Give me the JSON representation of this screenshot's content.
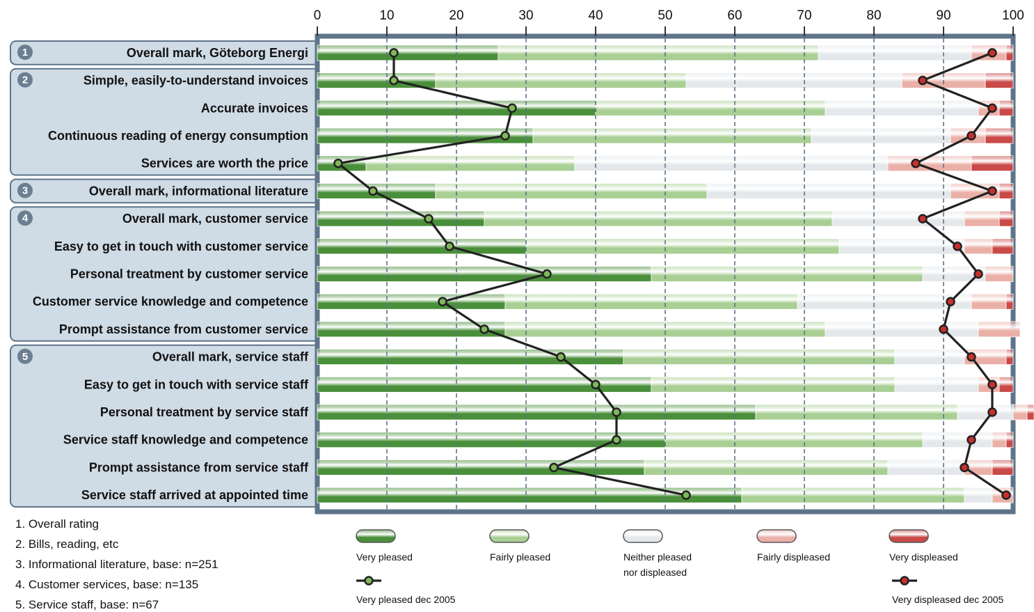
{
  "chart_data": {
    "type": "bar",
    "orientation": "horizontal",
    "stacked": true,
    "xlim": [
      0,
      100
    ],
    "x_ticks": [
      "0",
      "10",
      "20",
      "30",
      "40",
      "50",
      "60",
      "70",
      "80",
      "90",
      "100"
    ],
    "grid": true,
    "categories": [
      "Overall mark, Göteborg Energi",
      "Simple, easily-to-understand invoices",
      "Accurate invoices",
      "Continuous reading of energy consumption",
      "Services are worth the price",
      "Overall mark, informational literature",
      "Overall mark, customer service",
      "Easy to get in touch with customer service",
      "Personal treatment by customer service",
      "Customer service knowledge and competence",
      "Prompt assistance from customer service",
      "Overall mark, service staff",
      "Easy to get in touch with service staff",
      "Personal treatment by service staff",
      "Service staff knowledge and competence",
      "Prompt assistance from service staff",
      "Service staff arrived at appointed time"
    ],
    "groups": [
      {
        "number": "1",
        "rows": [
          0,
          0
        ]
      },
      {
        "number": "2",
        "rows": [
          1,
          4
        ]
      },
      {
        "number": "3",
        "rows": [
          5,
          5
        ]
      },
      {
        "number": "4",
        "rows": [
          6,
          10
        ]
      },
      {
        "number": "5",
        "rows": [
          11,
          16
        ]
      }
    ],
    "series": [
      {
        "name": "Very pleased",
        "color": "#4a8f3a",
        "values": [
          26,
          17,
          40,
          31,
          7,
          17,
          24,
          30,
          48,
          27,
          27,
          44,
          48,
          63,
          50,
          47,
          61
        ]
      },
      {
        "name": "Fairly pleased",
        "color": "#a9cf94",
        "values": [
          46,
          36,
          33,
          40,
          30,
          39,
          50,
          45,
          39,
          42,
          46,
          39,
          35,
          29,
          37,
          35,
          32
        ]
      },
      {
        "name": "Neither pleased nor displeased",
        "color": "#e4e8eb",
        "values": [
          22,
          31,
          22,
          20,
          45,
          35,
          19,
          18,
          9,
          25,
          22,
          10,
          12,
          8,
          10,
          11,
          4
        ]
      },
      {
        "name": "Fairly displeased",
        "color": "#eab0a8",
        "values": [
          5,
          12,
          3,
          5,
          12,
          7,
          5,
          4,
          4,
          5,
          6,
          6,
          3,
          2,
          2,
          4,
          3
        ]
      },
      {
        "name": "Very displeased",
        "color": "#c94a48",
        "values": [
          1,
          4,
          2,
          4,
          6,
          2,
          2,
          3,
          0,
          1,
          0,
          1,
          2,
          1,
          1,
          3,
          0
        ]
      }
    ],
    "line_series": [
      {
        "name": "Very pleased dec 2005",
        "color": "#7fb85a",
        "values": [
          11,
          11,
          28,
          27,
          3,
          8,
          16,
          19,
          33,
          18,
          24,
          35,
          40,
          43,
          43,
          34,
          53
        ]
      },
      {
        "name": "Very displeased dec 2005",
        "color": "#c9302c",
        "values": [
          97,
          87,
          97,
          94,
          86,
          97,
          87,
          92,
          95,
          91,
          90,
          94,
          97,
          97,
          94,
          93,
          99
        ]
      }
    ],
    "legend": {
      "placement": "bottom",
      "items": [
        {
          "label_lines": [
            "Very pleased"
          ],
          "color": "#4a8f3a"
        },
        {
          "label_lines": [
            "Fairly pleased"
          ],
          "color": "#a9cf94"
        },
        {
          "label_lines": [
            "Neither pleased",
            "nor displeased"
          ],
          "color": "#e4e8eb"
        },
        {
          "label_lines": [
            "Fairly displeased"
          ],
          "color": "#eab0a8"
        },
        {
          "label_lines": [
            "Very displeased"
          ],
          "color": "#c94a48"
        }
      ],
      "line_items": [
        {
          "label": "Very pleased dec 2005",
          "color": "#7fb85a"
        },
        {
          "label": "Very displeased dec 2005",
          "color": "#c9302c"
        }
      ]
    },
    "notes": [
      "1. Overall rating",
      "2. Bills, reading, etc",
      "3. Informational literature, base: n=251",
      "4. Customer services, base: n=135",
      "5. Service staff, base: n=67"
    ],
    "colors": {
      "frame": "#5e7489",
      "group_box": "#cfdbe5",
      "group_box_border": "#5e7489",
      "grid": "#5e7489",
      "line": "#222222"
    }
  }
}
